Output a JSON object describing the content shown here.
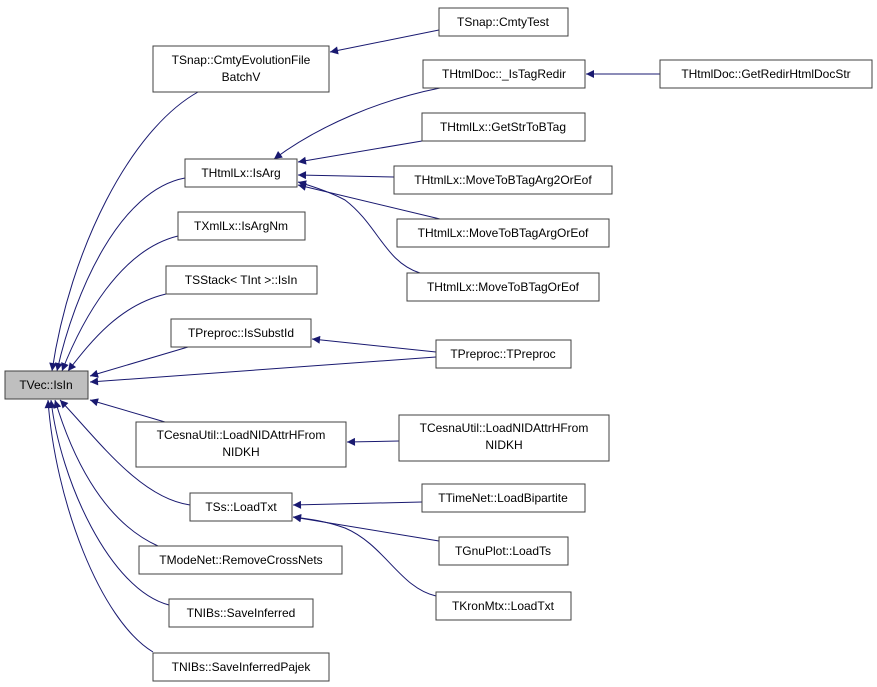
{
  "colors": {
    "edge": "#191970",
    "focus_fill": "#bfbfbf",
    "node_fill": "#ffffff",
    "node_border": "#404040"
  },
  "nodes": {
    "isin": [
      "TVec::IsIn"
    ],
    "cmtyevo": [
      "TSnap::CmtyEvolutionFile",
      "BatchV"
    ],
    "isarg": [
      "THtmlLx::IsArg"
    ],
    "isargnm": [
      "TXmlLx::IsArgNm"
    ],
    "tsstack": [
      "TSStack< TInt >::IsIn"
    ],
    "issubstid": [
      "TPreproc::IsSubstId"
    ],
    "cesna_left": [
      "TCesnaUtil::LoadNIDAttrHFrom",
      "NIDKH"
    ],
    "ssloadtxt": [
      "TSs::LoadTxt"
    ],
    "modenet": [
      "TModeNet::RemoveCrossNets"
    ],
    "saveinf": [
      "TNIBs::SaveInferred"
    ],
    "saveinfpajek": [
      "TNIBs::SaveInferredPajek"
    ],
    "cmtytest": [
      "TSnap::CmtyTest"
    ],
    "istagredir": [
      "THtmlDoc::_IsTagRedir"
    ],
    "getstrtobtag": [
      "THtmlLx::GetStrToBTag"
    ],
    "arg2oreof": [
      "THtmlLx::MoveToBTagArg2OrEof"
    ],
    "argoreof": [
      "THtmlLx::MoveToBTagArgOrEof"
    ],
    "btagoreof": [
      "THtmlLx::MoveToBTagOrEof"
    ],
    "tpreproc": [
      "TPreproc::TPreproc"
    ],
    "cesna_right": [
      "TCesnaUtil::LoadNIDAttrHFrom",
      "NIDKH"
    ],
    "loadbipartite": [
      "TTimeNet::LoadBipartite"
    ],
    "loadts": [
      "TGnuPlot::LoadTs"
    ],
    "kronloadtxt": [
      "TKronMtx::LoadTxt"
    ],
    "getredir": [
      "THtmlDoc::GetRedirHtmlDocStr"
    ]
  },
  "edges": [
    {
      "from": "TSnap::CmtyEvolutionFileBatchV",
      "to": "TVec::IsIn"
    },
    {
      "from": "THtmlLx::IsArg",
      "to": "TVec::IsIn"
    },
    {
      "from": "TXmlLx::IsArgNm",
      "to": "TVec::IsIn"
    },
    {
      "from": "TSStack< TInt >::IsIn",
      "to": "TVec::IsIn"
    },
    {
      "from": "TPreproc::IsSubstId",
      "to": "TVec::IsIn"
    },
    {
      "from": "TPreproc::TPreproc",
      "to": "TVec::IsIn"
    },
    {
      "from": "TCesnaUtil::LoadNIDAttrHFromNIDKH",
      "to": "TVec::IsIn"
    },
    {
      "from": "TSs::LoadTxt",
      "to": "TVec::IsIn"
    },
    {
      "from": "TModeNet::RemoveCrossNets",
      "to": "TVec::IsIn"
    },
    {
      "from": "TNIBs::SaveInferred",
      "to": "TVec::IsIn"
    },
    {
      "from": "TNIBs::SaveInferredPajek",
      "to": "TVec::IsIn"
    },
    {
      "from": "TSnap::CmtyTest",
      "to": "TSnap::CmtyEvolutionFileBatchV"
    },
    {
      "from": "THtmlDoc::_IsTagRedir",
      "to": "THtmlLx::IsArg"
    },
    {
      "from": "THtmlLx::GetStrToBTag",
      "to": "THtmlLx::IsArg"
    },
    {
      "from": "THtmlLx::MoveToBTagArg2OrEof",
      "to": "THtmlLx::IsArg"
    },
    {
      "from": "THtmlLx::MoveToBTagArgOrEof",
      "to": "THtmlLx::IsArg"
    },
    {
      "from": "THtmlLx::MoveToBTagOrEof",
      "to": "THtmlLx::IsArg"
    },
    {
      "from": "TPreproc::TPreproc",
      "to": "TPreproc::IsSubstId"
    },
    {
      "from": "TCesnaUtil::LoadNIDAttrHFromNIDKH",
      "to": "TCesnaUtil::LoadNIDAttrHFromNIDKH"
    },
    {
      "from": "TTimeNet::LoadBipartite",
      "to": "TSs::LoadTxt"
    },
    {
      "from": "TGnuPlot::LoadTs",
      "to": "TSs::LoadTxt"
    },
    {
      "from": "TKronMtx::LoadTxt",
      "to": "TSs::LoadTxt"
    },
    {
      "from": "THtmlDoc::GetRedirHtmlDocStr",
      "to": "THtmlDoc::_IsTagRedir"
    }
  ]
}
